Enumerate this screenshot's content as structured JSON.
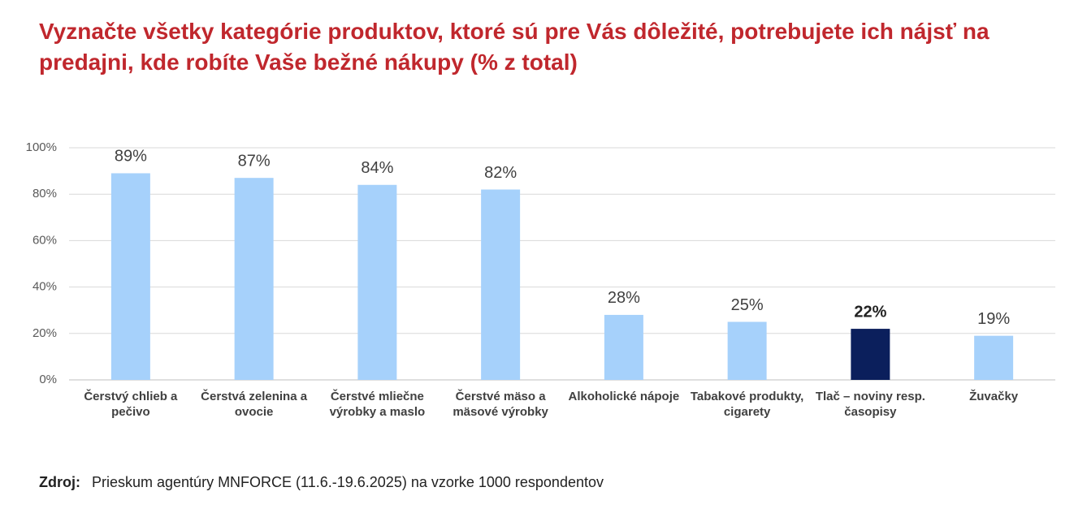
{
  "chart_data": {
    "type": "bar",
    "title": "Vyznačte všetky kategórie produktov, ktoré sú pre Vás dôležité, potrebujete ich nájsť na predajni, kde robíte Vaše bežné nákupy (% z total)",
    "categories": [
      "Čerstvý chlieb a pečivo",
      "Čerstvá zelenina a ovocie",
      "Čerstvé mliečne výrobky a maslo",
      "Čerstvé mäso a mäsové výrobky",
      "Alkoholické nápoje",
      "Tabakové produkty, cigarety",
      "Tlač – noviny resp. časopisy",
      "Žuvačky"
    ],
    "values": [
      89,
      87,
      84,
      82,
      28,
      25,
      22,
      19
    ],
    "value_labels": [
      "89%",
      "87%",
      "84%",
      "82%",
      "28%",
      "25%",
      "22%",
      "19%"
    ],
    "color": "#a6d1fb",
    "colors": [
      "#a6d1fb",
      "#a6d1fb",
      "#a6d1fb",
      "#a6d1fb",
      "#a6d1fb",
      "#a6d1fb",
      "#0b1f5c",
      "#a6d1fb"
    ],
    "ylim": [
      0,
      100
    ],
    "yticks": [
      {
        "value": 0,
        "label": "0%"
      },
      {
        "value": 20,
        "label": "20%"
      },
      {
        "value": 40,
        "label": "40%"
      },
      {
        "value": 60,
        "label": "60%"
      },
      {
        "value": 80,
        "label": "80%"
      },
      {
        "value": 100,
        "label": "100%"
      }
    ],
    "grid": true
  },
  "source": {
    "label": "Zdroj:",
    "text": "Prieskum agentúry MNFORCE (11.6.-19.6.2025) na vzorke 1000 respondentov"
  }
}
